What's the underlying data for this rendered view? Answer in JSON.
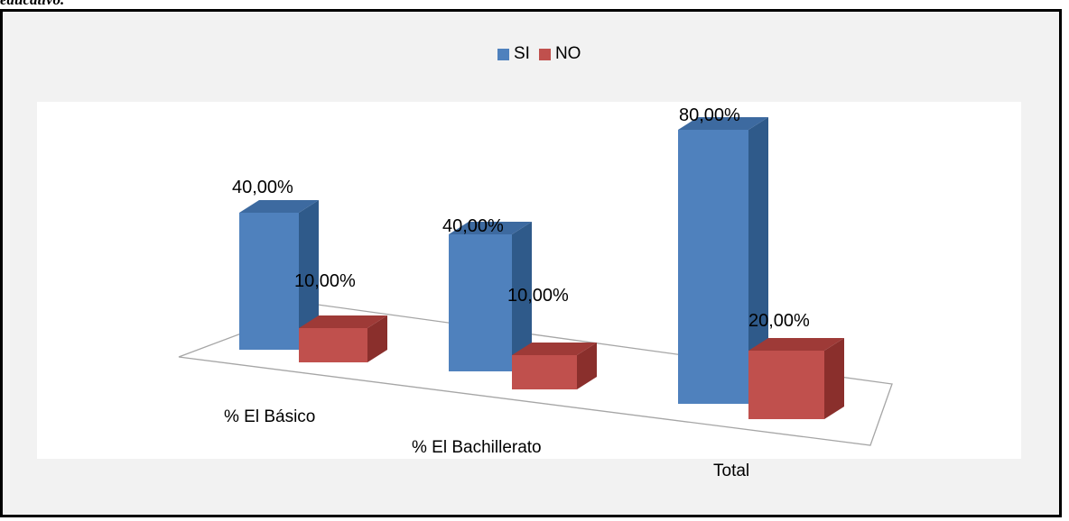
{
  "caption_fragment": "educativo.",
  "chart_data": {
    "type": "bar",
    "categories": [
      "% El Básico",
      "% El Bachillerato",
      "Total"
    ],
    "series": [
      {
        "name": "SI",
        "values": [
          40,
          40,
          80
        ],
        "labels": [
          "40,00%",
          "40,00%",
          "80,00%"
        ]
      },
      {
        "name": "NO",
        "values": [
          10,
          10,
          20
        ],
        "labels": [
          "10,00%",
          "10,00%",
          "20,00%"
        ]
      }
    ],
    "legend_position": "top",
    "grid": false,
    "three_d": true,
    "colors": {
      "SI": "#4f81bd",
      "NO": "#c0504d"
    }
  }
}
